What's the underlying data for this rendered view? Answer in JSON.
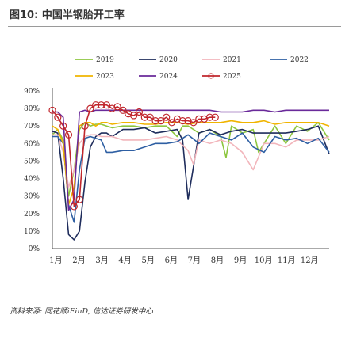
{
  "figure": {
    "title": "图10: 中国半钢胎开工率",
    "source": "资料来源: 同花顺iFinD, 信达证券研发中心"
  },
  "chart_data": {
    "type": "line",
    "title": "图10: 中国半钢胎开工率",
    "xlabel": "",
    "ylabel": "",
    "ylim": [
      0,
      90
    ],
    "y_tick_labels": [
      "0%",
      "10%",
      "20%",
      "30%",
      "40%",
      "50%",
      "60%",
      "70%",
      "80%",
      "90%"
    ],
    "x_tick_labels": [
      "1月",
      "2月",
      "3月",
      "4月",
      "5月",
      "6月",
      "7月",
      "8月",
      "9月",
      "10月",
      "11月",
      "12月"
    ],
    "legend_position": "top",
    "x_unit": "week",
    "x_range": [
      1,
      52
    ],
    "series": [
      {
        "name": "2019",
        "color": "#8dc63f",
        "marker": "none",
        "x": [
          1,
          2,
          3,
          4,
          5,
          6,
          7,
          8,
          9,
          10,
          11,
          12,
          14,
          16,
          18,
          20,
          22,
          24,
          25,
          26,
          28,
          30,
          32,
          33,
          34,
          36,
          38,
          39,
          40,
          42,
          44,
          46,
          48,
          50,
          52
        ],
        "y": [
          65,
          68,
          62,
          30,
          45,
          68,
          72,
          70,
          71,
          71,
          70,
          69,
          70,
          70,
          69,
          70,
          70,
          64,
          70,
          70,
          66,
          68,
          64,
          52,
          70,
          66,
          68,
          55,
          60,
          70,
          60,
          70,
          67,
          72,
          62
        ]
      },
      {
        "name": "2020",
        "color": "#1f2d5c",
        "marker": "none",
        "x": [
          1,
          2,
          3,
          4,
          5,
          6,
          7,
          8,
          9,
          10,
          11,
          12,
          14,
          16,
          18,
          20,
          22,
          24,
          25,
          26,
          28,
          30,
          32,
          34,
          36,
          38,
          40,
          42,
          44,
          46,
          48,
          50,
          52
        ],
        "y": [
          67,
          66,
          40,
          8,
          5,
          10,
          38,
          58,
          64,
          66,
          66,
          64,
          68,
          68,
          69,
          66,
          67,
          68,
          62,
          28,
          66,
          68,
          65,
          67,
          68,
          66,
          66,
          66,
          66,
          67,
          68,
          70,
          54
        ]
      },
      {
        "name": "2021",
        "color": "#f2b5bb",
        "marker": "none",
        "x": [
          1,
          2,
          3,
          4,
          5,
          6,
          7,
          8,
          9,
          10,
          11,
          12,
          14,
          16,
          18,
          20,
          22,
          24,
          26,
          27,
          28,
          30,
          32,
          34,
          36,
          38,
          40,
          42,
          44,
          46,
          48,
          50,
          52
        ],
        "y": [
          65,
          65,
          55,
          35,
          45,
          60,
          64,
          65,
          65,
          64,
          64,
          64,
          62,
          62,
          62,
          63,
          64,
          62,
          56,
          48,
          62,
          60,
          62,
          60,
          55,
          45,
          60,
          60,
          58,
          62,
          62,
          62,
          64
        ]
      },
      {
        "name": "2022",
        "color": "#2e5fa3",
        "marker": "none",
        "x": [
          1,
          2,
          3,
          4,
          5,
          6,
          7,
          8,
          9,
          10,
          11,
          12,
          14,
          16,
          18,
          20,
          22,
          24,
          26,
          28,
          30,
          32,
          34,
          36,
          38,
          40,
          42,
          44,
          46,
          48,
          50,
          52
        ],
        "y": [
          64,
          64,
          60,
          25,
          15,
          45,
          63,
          64,
          63,
          62,
          55,
          55,
          56,
          56,
          58,
          60,
          60,
          61,
          65,
          60,
          66,
          64,
          62,
          66,
          58,
          55,
          64,
          62,
          63,
          60,
          63,
          55
        ]
      },
      {
        "name": "2023",
        "color": "#f0b400",
        "marker": "none",
        "x": [
          1,
          2,
          3,
          4,
          5,
          6,
          7,
          8,
          9,
          10,
          11,
          12,
          14,
          16,
          18,
          20,
          22,
          24,
          26,
          28,
          30,
          32,
          34,
          36,
          38,
          40,
          42,
          44,
          46,
          48,
          50,
          52
        ],
        "y": [
          70,
          68,
          60,
          25,
          35,
          70,
          72,
          72,
          70,
          72,
          72,
          71,
          72,
          72,
          71,
          71,
          72,
          72,
          71,
          72,
          72,
          72,
          73,
          72,
          72,
          73,
          71,
          72,
          72,
          72,
          72,
          70
        ]
      },
      {
        "name": "2024",
        "color": "#6a2a9a",
        "marker": "none",
        "x": [
          1,
          2,
          3,
          4,
          5,
          6,
          7,
          8,
          9,
          10,
          11,
          12,
          14,
          16,
          18,
          20,
          22,
          24,
          26,
          28,
          30,
          32,
          34,
          36,
          38,
          40,
          42,
          44,
          46,
          48,
          50,
          52
        ],
        "y": [
          78,
          78,
          75,
          22,
          28,
          78,
          79,
          78,
          79,
          79,
          79,
          79,
          79,
          79,
          79,
          79,
          79,
          79,
          79,
          79,
          79,
          78,
          78,
          78,
          79,
          79,
          78,
          79,
          79,
          79,
          79,
          79
        ]
      },
      {
        "name": "2025",
        "color": "#c1272d",
        "marker": "circle",
        "x": [
          1,
          2,
          3,
          4,
          5,
          6,
          7,
          8,
          9,
          10,
          11,
          12,
          13,
          14,
          15,
          16,
          17,
          18,
          19,
          20,
          21,
          22,
          23,
          24,
          25,
          26,
          27,
          28,
          29,
          30,
          31
        ],
        "y": [
          79,
          75,
          70,
          65,
          24,
          28,
          70,
          80,
          82,
          82,
          82,
          80,
          81,
          79,
          77,
          76,
          78,
          75,
          75,
          73,
          73,
          75,
          72,
          74,
          73,
          73,
          72,
          74,
          74,
          75,
          75
        ]
      }
    ]
  }
}
